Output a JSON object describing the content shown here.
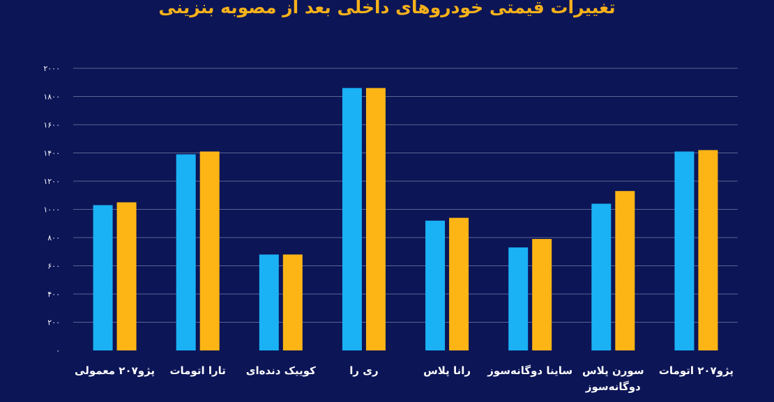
{
  "chart_data": {
    "type": "bar",
    "title": "تغییرات قیمتی خودروهای داخلی بعد از مصوبه بنزینی",
    "categories": [
      [
        "پژو۲۰۷ معمولی"
      ],
      [
        "تارا اتومات"
      ],
      [
        "کوییک دنده‌ای"
      ],
      [
        "ری را"
      ],
      [
        "رانا پلاس"
      ],
      [
        "ساینا دوگانه‌سوز"
      ],
      [
        "سورن پلاس",
        "دوگانه‌سوز"
      ],
      [
        "پژو۲۰۷ اتومات"
      ]
    ],
    "series": [
      {
        "color": "#1ab2f5",
        "values": [
          1030,
          1390,
          680,
          1860,
          920,
          730,
          1040,
          1410
        ]
      },
      {
        "color": "#fdb515",
        "values": [
          1050,
          1410,
          680,
          1860,
          940,
          790,
          1130,
          1420
        ]
      }
    ],
    "ylim": [
      0,
      2000
    ],
    "yticks": [
      0,
      200,
      400,
      600,
      800,
      1000,
      1200,
      1400,
      1600,
      1800,
      2000
    ],
    "ytick_labels": [
      "۰",
      "۲۰۰",
      "۴۰۰",
      "۶۰۰",
      "۸۰۰",
      "۱۰۰۰",
      "۱۲۰۰",
      "۱۴۰۰",
      "۱۶۰۰",
      "۱۸۰۰",
      "۲۰۰۰"
    ],
    "grid": true
  }
}
